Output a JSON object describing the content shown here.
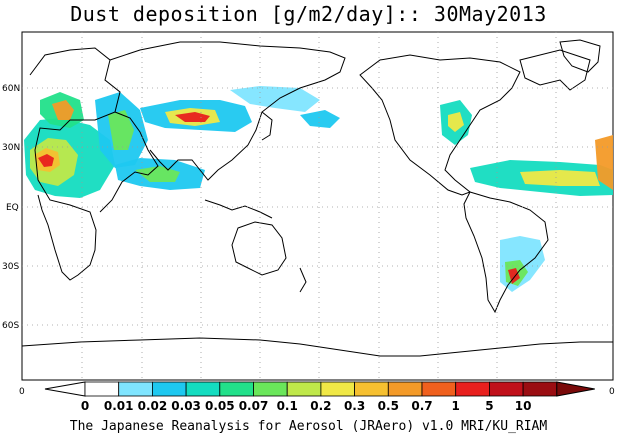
{
  "title": "Dust deposition [g/m2/day]:: 30May2013",
  "footer": "The Japanese Reanalysis for Aerosol (JRAero) v1.0 MRI/KU_RIAM",
  "axis": {
    "lat_labels": [
      "60N",
      "30N",
      "EQ",
      "30S",
      "60S"
    ],
    "lon_labels": [
      "0",
      "0"
    ]
  },
  "colorbar": {
    "labels": [
      "0",
      "0.01",
      "0.02",
      "0.03",
      "0.05",
      "0.07",
      "0.1",
      "0.2",
      "0.3",
      "0.5",
      "0.7",
      "1",
      "5",
      "10"
    ],
    "colors": [
      "#ffffff",
      "#ffffff",
      "#7fe5ff",
      "#1ec8f0",
      "#14dcc0",
      "#22e08a",
      "#6ae65a",
      "#bfe84a",
      "#f0e846",
      "#f6c030",
      "#f39a28",
      "#f0601e",
      "#e8201e",
      "#c0101a",
      "#9a0d12",
      "#7a0a0a"
    ],
    "arrow_left_color": "#ffffff",
    "arrow_right_color": "#7a0a0a"
  },
  "colors": {
    "land_outline": "#000000",
    "grid": "#9a9a9a",
    "frame": "#000000"
  }
}
